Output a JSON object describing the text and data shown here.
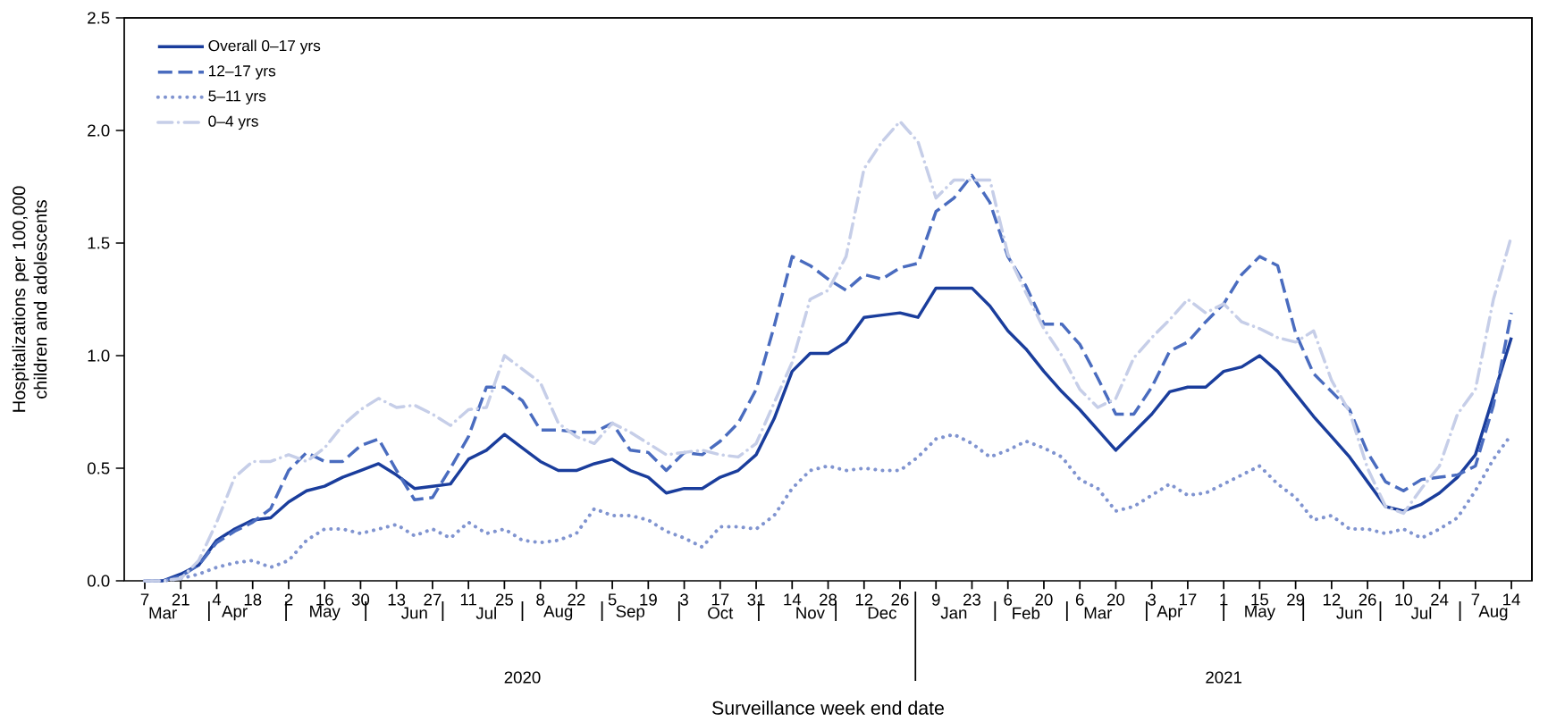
{
  "chart_data": {
    "type": "line",
    "xlabel": "Surveillance week end date",
    "ylabel": "Hospitalizations per 100,000 children and adolescents",
    "x": [
      "2020-03-07",
      "2020-03-14",
      "2020-03-21",
      "2020-03-28",
      "2020-04-04",
      "2020-04-11",
      "2020-04-18",
      "2020-04-25",
      "2020-05-02",
      "2020-05-09",
      "2020-05-16",
      "2020-05-23",
      "2020-05-30",
      "2020-06-06",
      "2020-06-13",
      "2020-06-20",
      "2020-06-27",
      "2020-07-04",
      "2020-07-11",
      "2020-07-18",
      "2020-07-25",
      "2020-08-01",
      "2020-08-08",
      "2020-08-15",
      "2020-08-22",
      "2020-08-29",
      "2020-09-05",
      "2020-09-12",
      "2020-09-19",
      "2020-09-26",
      "2020-10-03",
      "2020-10-10",
      "2020-10-17",
      "2020-10-24",
      "2020-10-31",
      "2020-11-07",
      "2020-11-14",
      "2020-11-21",
      "2020-11-28",
      "2020-12-05",
      "2020-12-12",
      "2020-12-19",
      "2020-12-26",
      "2021-01-02",
      "2021-01-09",
      "2021-01-16",
      "2021-01-23",
      "2021-01-30",
      "2021-02-06",
      "2021-02-13",
      "2021-02-20",
      "2021-02-27",
      "2021-03-06",
      "2021-03-13",
      "2021-03-20",
      "2021-03-27",
      "2021-04-03",
      "2021-04-10",
      "2021-04-17",
      "2021-04-24",
      "2021-05-01",
      "2021-05-08",
      "2021-05-15",
      "2021-05-22",
      "2021-05-29",
      "2021-06-05",
      "2021-06-12",
      "2021-06-19",
      "2021-06-26",
      "2021-07-03",
      "2021-07-10",
      "2021-07-17",
      "2021-07-24",
      "2021-07-31",
      "2021-08-07",
      "2021-08-14",
      "2021-08-21"
    ],
    "series": [
      {
        "name": "Overall 0–17 yrs",
        "color": "#1a3d9c",
        "line_style": "solid",
        "values": [
          0,
          0,
          0.03,
          0.07,
          0.18,
          0.23,
          0.27,
          0.28,
          0.35,
          0.4,
          0.42,
          0.46,
          0.49,
          0.52,
          0.47,
          0.41,
          0.42,
          0.43,
          0.54,
          0.58,
          0.65,
          0.59,
          0.53,
          0.49,
          0.49,
          0.52,
          0.54,
          0.49,
          0.46,
          0.39,
          0.41,
          0.41,
          0.46,
          0.49,
          0.56,
          0.72,
          0.93,
          1.01,
          1.01,
          1.06,
          1.17,
          1.18,
          1.19,
          1.17,
          1.3,
          1.3,
          1.3,
          1.22,
          1.11,
          1.03,
          0.93,
          0.84,
          0.76,
          0.67,
          0.58,
          0.66,
          0.74,
          0.84,
          0.86,
          0.86,
          0.93,
          0.95,
          1.0,
          0.93,
          0.83,
          0.73,
          0.64,
          0.55,
          0.44,
          0.33,
          0.31,
          0.34,
          0.39,
          0.46,
          0.56,
          0.82,
          1.08
        ]
      },
      {
        "name": "12–17 yrs",
        "color": "#4a6cbf",
        "line_style": "dashed",
        "values": [
          0,
          0,
          0.02,
          0.07,
          0.17,
          0.22,
          0.26,
          0.32,
          0.49,
          0.57,
          0.53,
          0.53,
          0.6,
          0.63,
          0.49,
          0.36,
          0.37,
          0.5,
          0.64,
          0.86,
          0.86,
          0.8,
          0.67,
          0.67,
          0.66,
          0.66,
          0.7,
          0.58,
          0.57,
          0.49,
          0.57,
          0.56,
          0.62,
          0.7,
          0.85,
          1.13,
          1.44,
          1.4,
          1.34,
          1.29,
          1.36,
          1.34,
          1.39,
          1.41,
          1.64,
          1.7,
          1.8,
          1.68,
          1.44,
          1.31,
          1.14,
          1.14,
          1.05,
          0.9,
          0.74,
          0.74,
          0.86,
          1.02,
          1.06,
          1.15,
          1.23,
          1.36,
          1.44,
          1.4,
          1.1,
          0.92,
          0.84,
          0.76,
          0.57,
          0.44,
          0.4,
          0.45,
          0.46,
          0.47,
          0.51,
          0.78,
          1.19
        ]
      },
      {
        "name": "5–11 yrs",
        "color": "#8094d0",
        "line_style": "dotted",
        "values": [
          0,
          0,
          0.01,
          0.03,
          0.06,
          0.08,
          0.09,
          0.06,
          0.09,
          0.18,
          0.23,
          0.23,
          0.21,
          0.23,
          0.25,
          0.2,
          0.23,
          0.19,
          0.26,
          0.21,
          0.23,
          0.18,
          0.17,
          0.18,
          0.21,
          0.32,
          0.29,
          0.29,
          0.27,
          0.22,
          0.19,
          0.15,
          0.24,
          0.24,
          0.23,
          0.29,
          0.41,
          0.49,
          0.51,
          0.49,
          0.5,
          0.49,
          0.49,
          0.55,
          0.63,
          0.65,
          0.61,
          0.55,
          0.58,
          0.62,
          0.59,
          0.55,
          0.45,
          0.41,
          0.31,
          0.33,
          0.38,
          0.43,
          0.38,
          0.39,
          0.43,
          0.47,
          0.51,
          0.43,
          0.37,
          0.27,
          0.29,
          0.23,
          0.23,
          0.21,
          0.23,
          0.19,
          0.23,
          0.28,
          0.4,
          0.54,
          0.65
        ]
      },
      {
        "name": "0–4 yrs",
        "color": "#c6cee8",
        "line_style": "dashdot",
        "values": [
          0,
          0,
          0.01,
          0.09,
          0.26,
          0.46,
          0.53,
          0.53,
          0.56,
          0.53,
          0.59,
          0.69,
          0.76,
          0.81,
          0.77,
          0.78,
          0.74,
          0.69,
          0.76,
          0.77,
          1.0,
          0.94,
          0.88,
          0.7,
          0.64,
          0.61,
          0.7,
          0.66,
          0.61,
          0.56,
          0.57,
          0.58,
          0.56,
          0.55,
          0.61,
          0.79,
          0.97,
          1.25,
          1.29,
          1.44,
          1.83,
          1.95,
          2.04,
          1.95,
          1.7,
          1.78,
          1.78,
          1.78,
          1.45,
          1.28,
          1.12,
          1.0,
          0.85,
          0.77,
          0.81,
          0.99,
          1.08,
          1.16,
          1.25,
          1.19,
          1.23,
          1.15,
          1.12,
          1.08,
          1.06,
          1.11,
          0.89,
          0.75,
          0.5,
          0.33,
          0.3,
          0.41,
          0.51,
          0.74,
          0.85,
          1.25,
          1.53
        ]
      }
    ],
    "xlim": [
      "2020-02-28",
      "2021-08-29"
    ],
    "xticks": [
      {
        "value": "2020-03-07",
        "label": "7"
      },
      {
        "value": "2020-03-21",
        "label": "21"
      },
      {
        "value": "2020-04-04",
        "label": "4"
      },
      {
        "value": "2020-04-18",
        "label": "18"
      },
      {
        "value": "2020-05-02",
        "label": "2"
      },
      {
        "value": "2020-05-16",
        "label": "16"
      },
      {
        "value": "2020-05-30",
        "label": "30"
      },
      {
        "value": "2020-06-13",
        "label": "13"
      },
      {
        "value": "2020-06-27",
        "label": "27"
      },
      {
        "value": "2020-07-11",
        "label": "11"
      },
      {
        "value": "2020-07-25",
        "label": "25"
      },
      {
        "value": "2020-08-08",
        "label": "8"
      },
      {
        "value": "2020-08-22",
        "label": "22"
      },
      {
        "value": "2020-09-05",
        "label": "5"
      },
      {
        "value": "2020-09-19",
        "label": "19"
      },
      {
        "value": "2020-10-03",
        "label": "3"
      },
      {
        "value": "2020-10-17",
        "label": "17"
      },
      {
        "value": "2020-10-31",
        "label": "31"
      },
      {
        "value": "2020-11-14",
        "label": "14"
      },
      {
        "value": "2020-11-28",
        "label": "28"
      },
      {
        "value": "2020-12-12",
        "label": "12"
      },
      {
        "value": "2020-12-26",
        "label": "26"
      },
      {
        "value": "2021-01-09",
        "label": "9"
      },
      {
        "value": "2021-01-23",
        "label": "23"
      },
      {
        "value": "2021-02-06",
        "label": "6"
      },
      {
        "value": "2021-02-20",
        "label": "20"
      },
      {
        "value": "2021-03-06",
        "label": "6"
      },
      {
        "value": "2021-03-20",
        "label": "20"
      },
      {
        "value": "2021-04-03",
        "label": "3"
      },
      {
        "value": "2021-04-17",
        "label": "17"
      },
      {
        "value": "2021-05-01",
        "label": "1"
      },
      {
        "value": "2021-05-15",
        "label": "15"
      },
      {
        "value": "2021-05-29",
        "label": "29"
      },
      {
        "value": "2021-06-12",
        "label": "12"
      },
      {
        "value": "2021-06-26",
        "label": "26"
      },
      {
        "value": "2021-07-10",
        "label": "10"
      },
      {
        "value": "2021-07-24",
        "label": "24"
      },
      {
        "value": "2021-08-07",
        "label": "7"
      },
      {
        "value": "2021-08-21",
        "label": "14"
      }
    ],
    "ylim": [
      0,
      2.5
    ],
    "yticks": [
      {
        "value": 0,
        "label": "0.0"
      },
      {
        "value": 0.5,
        "label": "0.5"
      },
      {
        "value": 1,
        "label": "1.0"
      },
      {
        "value": 1.5,
        "label": "1.5"
      },
      {
        "value": 2,
        "label": "2.0"
      },
      {
        "value": 2.5,
        "label": "2.5"
      }
    ],
    "legend": "top left",
    "annotations": [
      "Mar",
      "Apr",
      "May",
      "Jun",
      "Jul",
      "Aug",
      "Sep",
      "Oct",
      "Nov",
      "Dec",
      "Jan",
      "Feb",
      "Mar",
      "Apr",
      "May",
      "Jun",
      "Jul",
      "Aug",
      "2020",
      "2021"
    ]
  }
}
